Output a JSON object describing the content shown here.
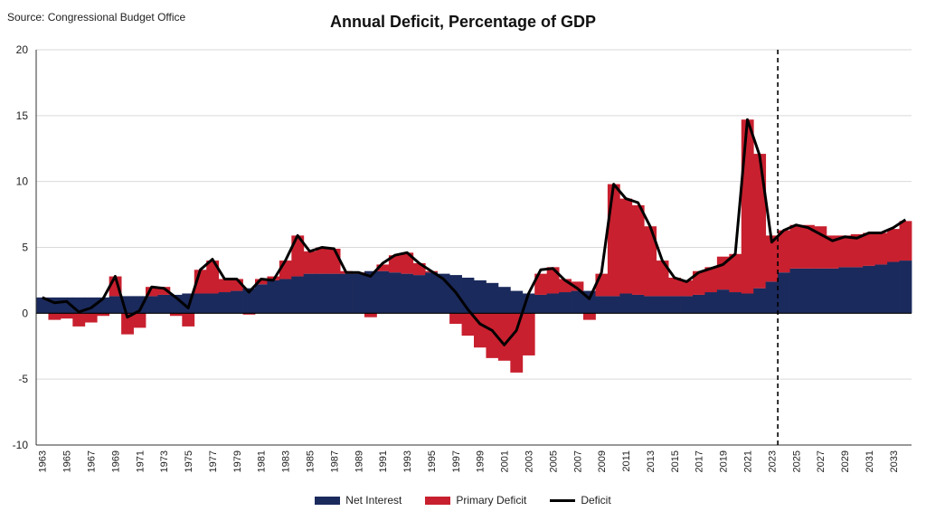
{
  "source": "Source: Congressional Budget Office",
  "chart_data": {
    "type": "bar",
    "title": "Annual Deficit, Percentage of GDP",
    "xlabel": "",
    "ylabel": "",
    "ylim": [
      -10,
      20
    ],
    "yticks": [
      -10,
      -5,
      0,
      5,
      10,
      15,
      20
    ],
    "grid": true,
    "legend_position": "bottom",
    "stacked": true,
    "projection_divider_year": 2024,
    "x": [
      1963,
      1964,
      1965,
      1966,
      1967,
      1968,
      1969,
      1970,
      1971,
      1972,
      1973,
      1974,
      1975,
      1976,
      1977,
      1978,
      1979,
      1980,
      1981,
      1982,
      1983,
      1984,
      1985,
      1986,
      1987,
      1988,
      1989,
      1990,
      1991,
      1992,
      1993,
      1994,
      1995,
      1996,
      1997,
      1998,
      1999,
      2000,
      2001,
      2002,
      2003,
      2004,
      2005,
      2006,
      2007,
      2008,
      2009,
      2010,
      2011,
      2012,
      2013,
      2014,
      2015,
      2016,
      2017,
      2018,
      2019,
      2020,
      2021,
      2022,
      2023,
      2024,
      2025,
      2026,
      2027,
      2028,
      2029,
      2030,
      2031,
      2032,
      2033,
      2034
    ],
    "tick_labels": [
      "1963",
      "1965",
      "1967",
      "1969",
      "1971",
      "1973",
      "1975",
      "1977",
      "1979",
      "1981",
      "1983",
      "1985",
      "1987",
      "1989",
      "1991",
      "1993",
      "1995",
      "1997",
      "1999",
      "2001",
      "2003",
      "2005",
      "2007",
      "2009",
      "2011",
      "2013",
      "2015",
      "2017",
      "2019",
      "2021",
      "2023",
      "2025",
      "2027",
      "2029",
      "2031",
      "2033"
    ],
    "series": [
      {
        "name": "Net Interest",
        "color": "#1b2a5c",
        "values": [
          1.2,
          1.2,
          1.2,
          1.2,
          1.2,
          1.2,
          1.3,
          1.3,
          1.3,
          1.3,
          1.4,
          1.4,
          1.5,
          1.5,
          1.5,
          1.6,
          1.7,
          1.9,
          2.2,
          2.5,
          2.6,
          2.8,
          3.0,
          3.0,
          3.0,
          3.0,
          3.0,
          3.2,
          3.2,
          3.1,
          3.0,
          2.9,
          3.1,
          3.0,
          2.9,
          2.7,
          2.5,
          2.3,
          2.0,
          1.7,
          1.5,
          1.4,
          1.5,
          1.6,
          1.7,
          1.7,
          1.3,
          1.3,
          1.5,
          1.4,
          1.3,
          1.3,
          1.3,
          1.3,
          1.4,
          1.6,
          1.8,
          1.6,
          1.5,
          1.9,
          2.4,
          3.1,
          3.4,
          3.4,
          3.4,
          3.4,
          3.5,
          3.5,
          3.6,
          3.7,
          3.9,
          4.0
        ]
      },
      {
        "name": "Primary Deficit",
        "color": "#c8202f",
        "values": [
          0.0,
          -0.5,
          -0.4,
          -1.0,
          -0.7,
          -0.2,
          1.5,
          -1.6,
          -1.1,
          0.7,
          0.6,
          -0.2,
          -1.0,
          1.8,
          2.5,
          1.0,
          0.9,
          -0.1,
          0.4,
          0.3,
          1.4,
          3.1,
          1.7,
          2.0,
          1.9,
          0.2,
          0.1,
          -0.3,
          0.5,
          1.3,
          1.6,
          0.9,
          0.1,
          0.0,
          -0.8,
          -1.7,
          -2.6,
          -3.4,
          -3.6,
          -4.5,
          -3.2,
          1.6,
          2.0,
          1.0,
          0.7,
          -0.5,
          1.7,
          8.5,
          7.2,
          6.8,
          5.3,
          2.7,
          1.4,
          1.2,
          1.8,
          1.9,
          2.5,
          2.9,
          13.2,
          10.2,
          3.5,
          3.2,
          3.3,
          3.3,
          3.2,
          2.5,
          2.4,
          2.5,
          2.5,
          2.4,
          2.5,
          3.0
        ]
      },
      {
        "name": "Deficit",
        "color": "#000000",
        "type": "line",
        "values": [
          1.2,
          0.8,
          0.9,
          0.1,
          0.4,
          1.1,
          2.8,
          -0.3,
          0.2,
          2.0,
          1.9,
          1.2,
          0.4,
          3.3,
          4.1,
          2.6,
          2.6,
          1.6,
          2.6,
          2.5,
          4.0,
          5.9,
          4.7,
          5.0,
          4.9,
          3.1,
          3.1,
          2.8,
          3.8,
          4.4,
          4.6,
          3.8,
          3.2,
          2.6,
          1.6,
          0.3,
          -0.8,
          -1.3,
          -2.4,
          -1.3,
          1.5,
          3.3,
          3.4,
          2.5,
          1.9,
          1.1,
          3.1,
          9.8,
          8.7,
          8.4,
          6.6,
          4.0,
          2.7,
          2.4,
          3.1,
          3.4,
          3.7,
          4.5,
          14.7,
          12.0,
          5.4,
          6.3,
          6.7,
          6.5,
          6.0,
          5.5,
          5.8,
          5.7,
          6.1,
          6.1,
          6.5,
          7.1
        ]
      }
    ]
  }
}
